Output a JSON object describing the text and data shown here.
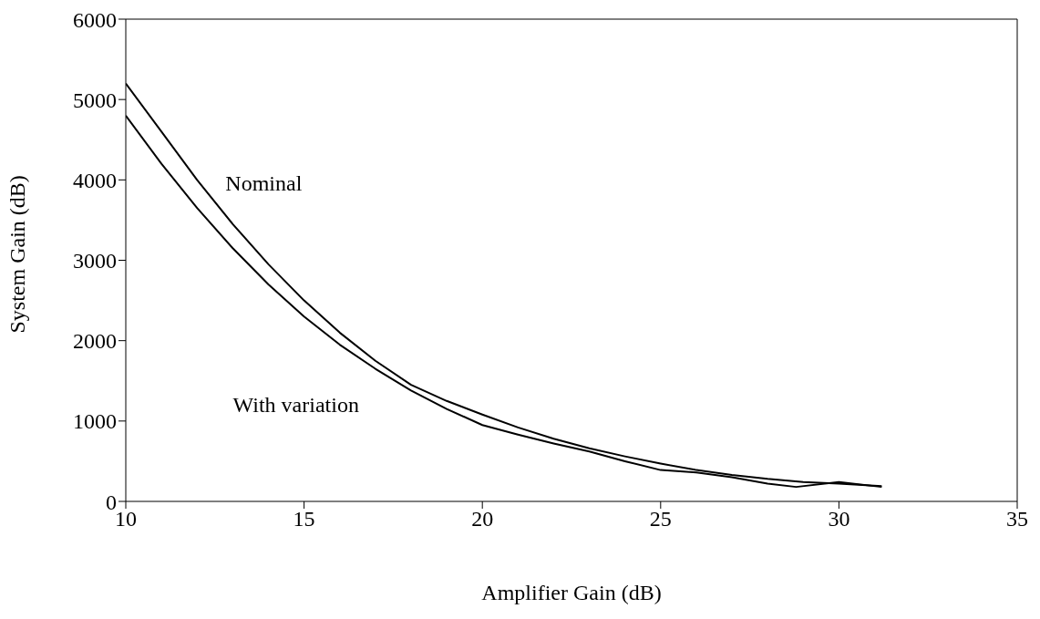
{
  "chart_data": {
    "type": "line",
    "xlabel": "Amplifier Gain (dB)",
    "ylabel": "System Gain (dB)",
    "xlim": [
      10,
      35
    ],
    "xticks": [
      10,
      15,
      20,
      25,
      30,
      35
    ],
    "ylim": [
      0,
      6000
    ],
    "yticks": [
      0,
      1000,
      2000,
      3000,
      4000,
      5000,
      6000
    ],
    "marker": "none",
    "line_style": "solid",
    "series": [
      {
        "name": "Nominal",
        "color": "#000000",
        "x": [
          10,
          11,
          12,
          13,
          14,
          15,
          16,
          17,
          18,
          19,
          20,
          21,
          22,
          23,
          24,
          25,
          26,
          27,
          28,
          29,
          30,
          31.2
        ],
        "values": [
          5200,
          4600,
          4000,
          3450,
          2950,
          2500,
          2100,
          1750,
          1450,
          1250,
          1080,
          920,
          780,
          660,
          560,
          470,
          390,
          330,
          280,
          240,
          220,
          190
        ]
      },
      {
        "name": "With variation",
        "color": "#000000",
        "x": [
          10,
          11,
          12,
          13,
          14,
          15,
          16,
          17,
          18,
          19,
          20,
          21,
          22,
          23,
          24,
          25,
          26,
          27,
          28,
          28.8,
          30,
          31.2
        ],
        "values": [
          4800,
          4200,
          3650,
          3150,
          2700,
          2300,
          1950,
          1650,
          1380,
          1150,
          950,
          830,
          720,
          620,
          500,
          390,
          360,
          300,
          220,
          180,
          240,
          180
        ]
      }
    ]
  }
}
